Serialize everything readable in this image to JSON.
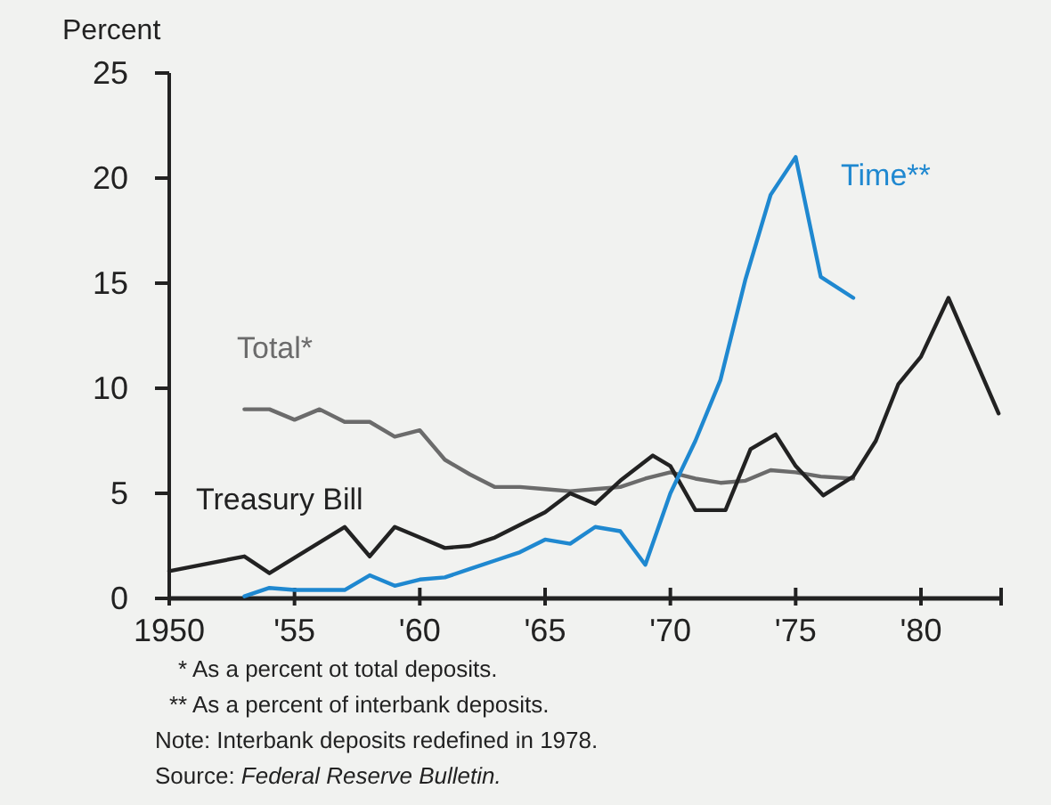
{
  "chart_data": {
    "type": "line",
    "ylabel": "Percent",
    "xlim": [
      1950,
      1983.2
    ],
    "xticks": [
      1950,
      {
        "value": 1955,
        "label": "'55"
      },
      {
        "value": 1960,
        "label": "'60"
      },
      {
        "value": 1965,
        "label": "'65"
      },
      {
        "value": 1970,
        "label": "'70"
      },
      {
        "value": 1975,
        "label": "'75"
      },
      {
        "value": 1980,
        "label": "'80"
      }
    ],
    "ylim": [
      0,
      25
    ],
    "yticks": [
      0,
      5,
      10,
      15,
      20,
      25
    ],
    "grid": false,
    "marker": "none",
    "line_style": "solid",
    "series": [
      {
        "name": "Total*",
        "color": "#6b6b6b",
        "x": [
          1953,
          1954,
          1955,
          1956,
          1957,
          1958,
          1959,
          1960,
          1961,
          1962,
          1963,
          1964,
          1965,
          1966,
          1967,
          1968,
          1969,
          1970,
          1971,
          1972,
          1973,
          1974,
          1975,
          1976,
          1977.3
        ],
        "values": [
          9.0,
          9.0,
          8.5,
          9.0,
          8.4,
          8.4,
          7.7,
          8.0,
          6.6,
          5.9,
          5.3,
          5.3,
          5.2,
          5.1,
          5.2,
          5.3,
          5.7,
          6.0,
          5.7,
          5.5,
          5.6,
          6.1,
          6.0,
          5.8,
          5.7
        ]
      },
      {
        "name": "Treasury Bill",
        "color": "#222222",
        "x": [
          1950,
          1953,
          1954,
          1957,
          1958,
          1959,
          1960,
          1961,
          1962,
          1963,
          1965,
          1966,
          1967,
          1968,
          1969.3,
          1970,
          1971,
          1972.2,
          1973.2,
          1974.2,
          1975,
          1976.1,
          1977.3,
          1978.2,
          1979.1,
          1980,
          1981.1,
          1983.1
        ],
        "values": [
          1.3,
          2.0,
          1.2,
          3.4,
          2.0,
          3.4,
          2.9,
          2.4,
          2.5,
          2.9,
          4.1,
          5.0,
          4.5,
          5.6,
          6.8,
          6.3,
          4.2,
          4.2,
          7.1,
          7.8,
          6.3,
          4.9,
          5.8,
          7.5,
          10.2,
          11.5,
          14.3,
          8.8
        ]
      },
      {
        "name": "Time**",
        "color": "#1f88d0",
        "x": [
          1953,
          1954,
          1955,
          1956,
          1957,
          1958,
          1959,
          1960,
          1961,
          1962,
          1963,
          1964,
          1965,
          1966,
          1967,
          1968,
          1969,
          1970,
          1971,
          1972,
          1973,
          1974,
          1975,
          1976,
          1977.3
        ],
        "values": [
          0.1,
          0.5,
          0.4,
          0.4,
          0.4,
          1.1,
          0.6,
          0.9,
          1.0,
          1.4,
          1.8,
          2.2,
          2.8,
          2.6,
          3.4,
          3.2,
          1.6,
          5.0,
          7.5,
          10.4,
          15.2,
          19.2,
          21.0,
          15.3,
          14.3
        ]
      }
    ],
    "annotations": [
      "* As a percent ot total deposits.",
      "** As a percent of interbank deposits.",
      "Note: Interbank deposits redefined in 1978.",
      "Source: Federal Reserve Bulletin."
    ]
  }
}
